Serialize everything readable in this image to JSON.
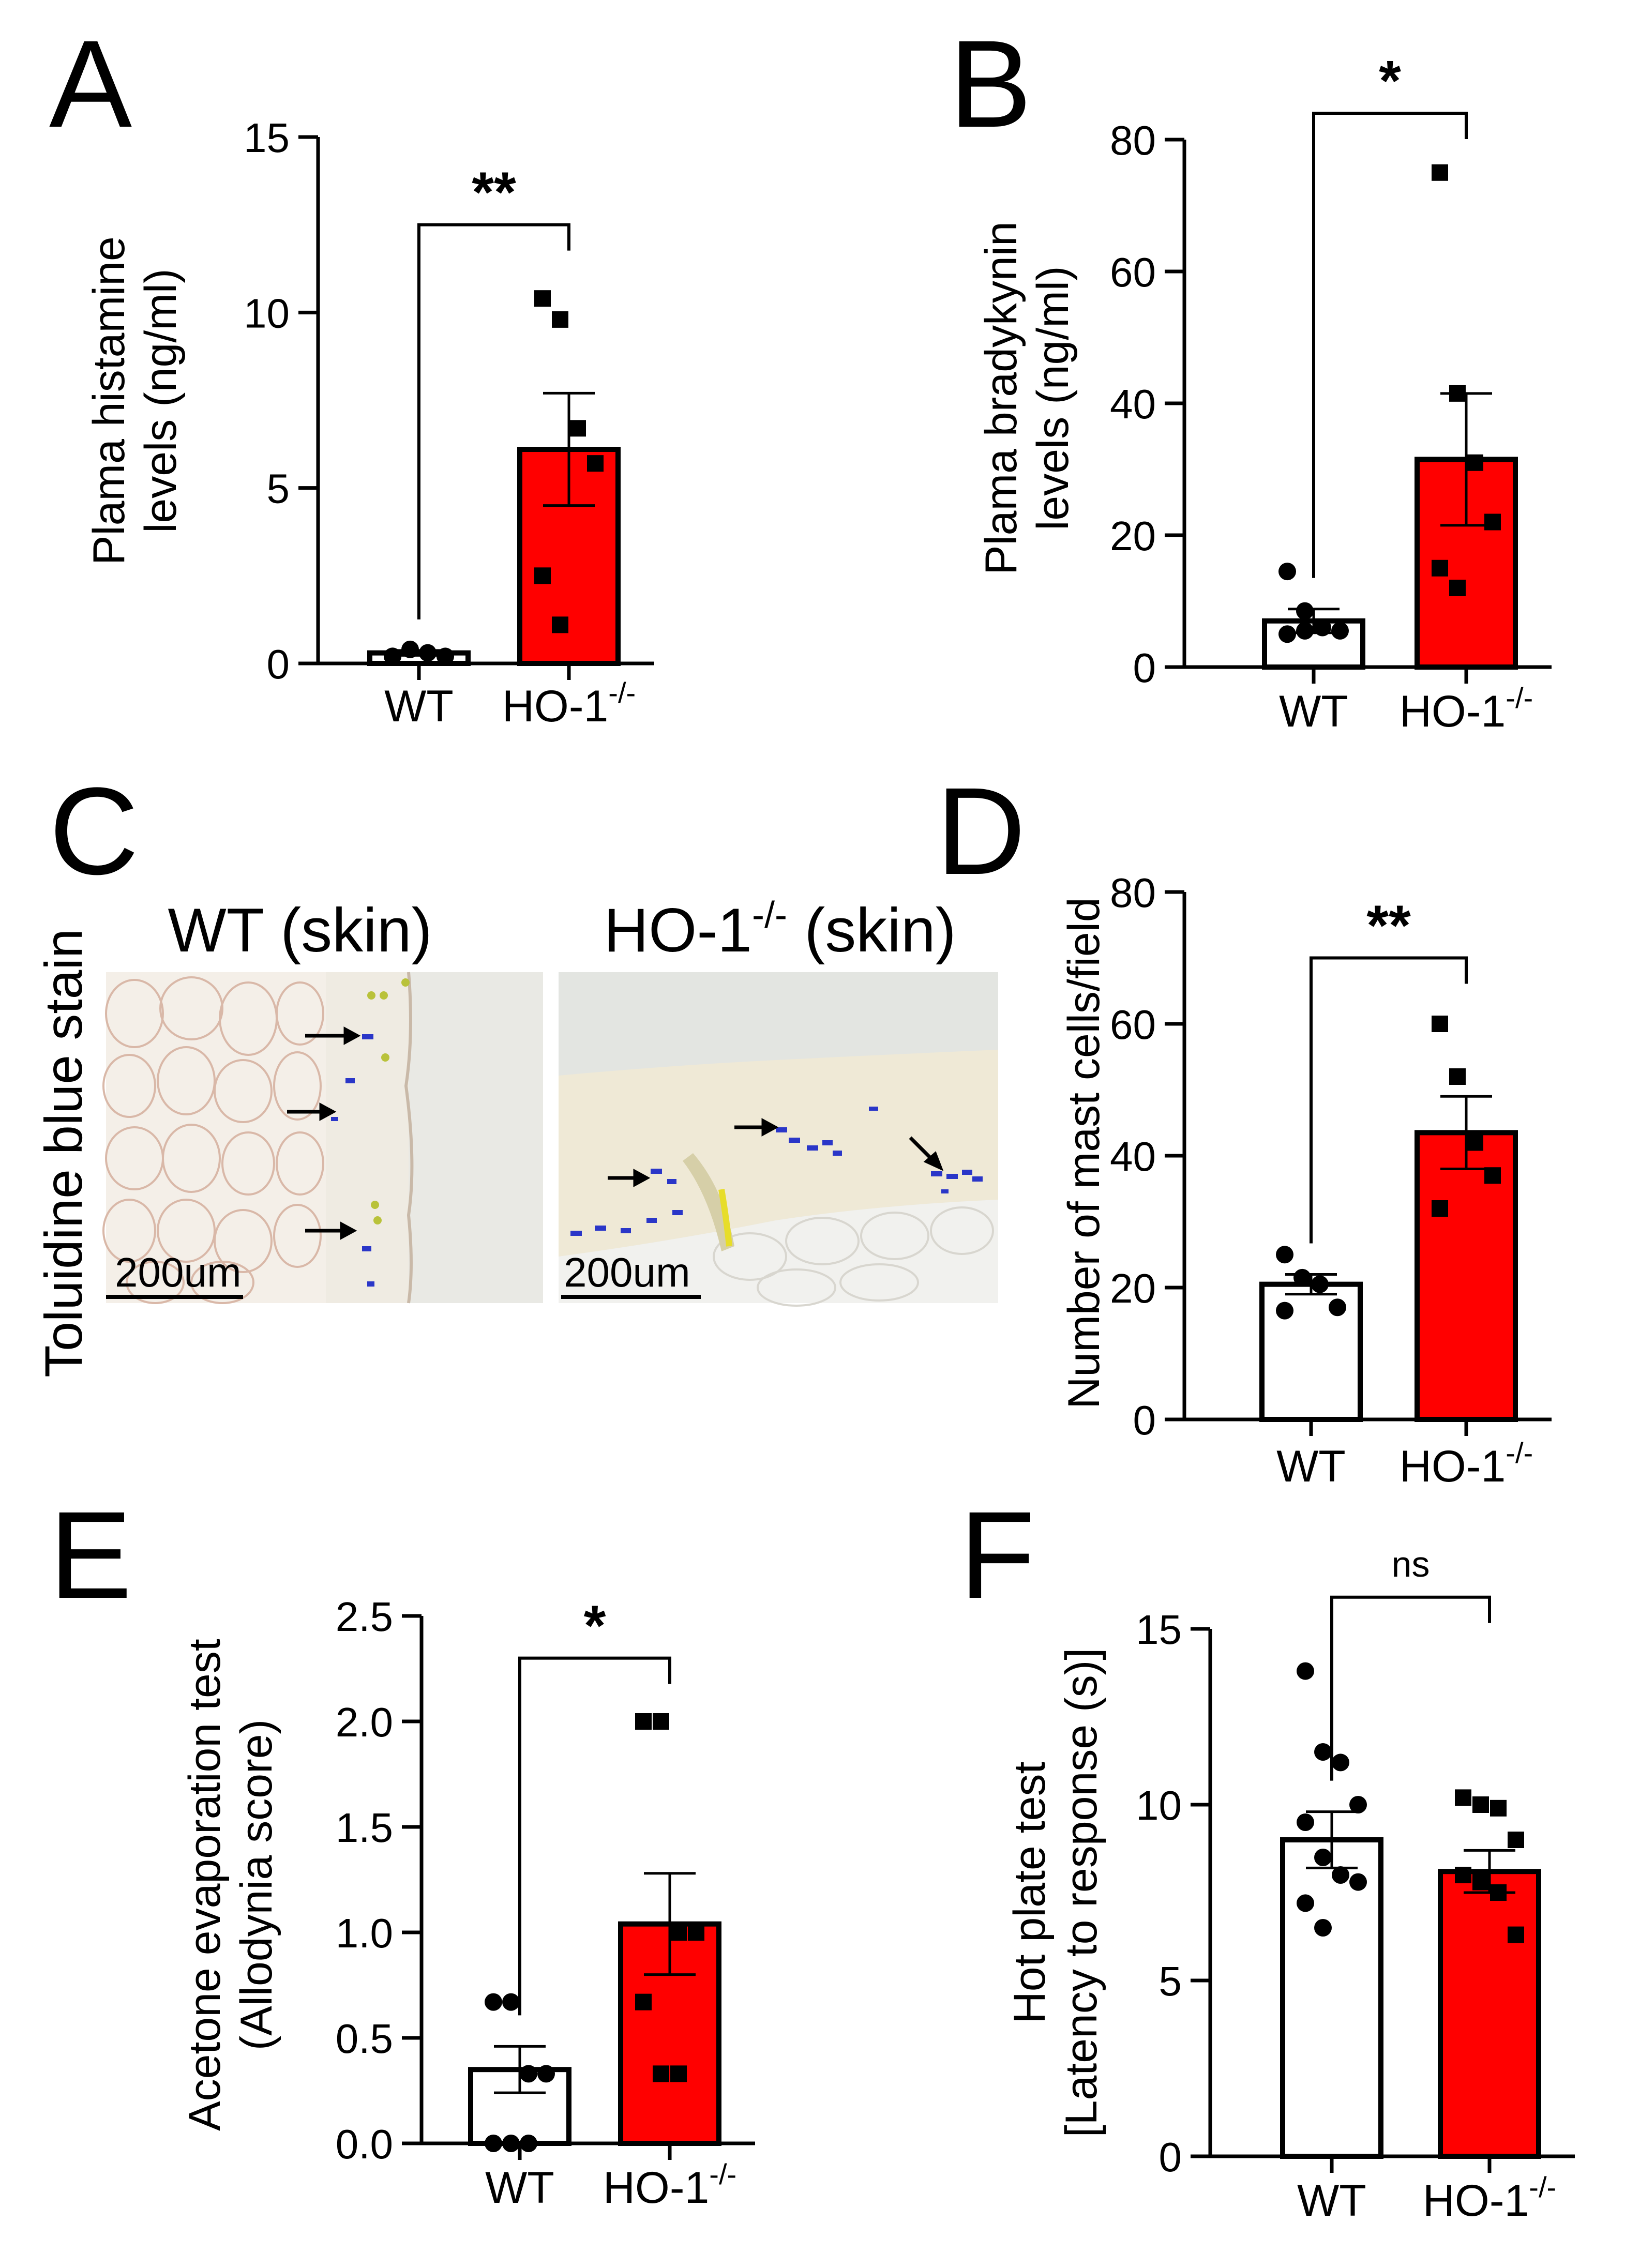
{
  "colors": {
    "wt_fill": "#ffffff",
    "ko_fill": "#ff0000",
    "ink": "#000000",
    "skin_bg": "#e6e7e2",
    "stain": "#2a36c8"
  },
  "chart_data": [
    {
      "panel": "A",
      "type": "bar",
      "ylabel": [
        "Plama histamine",
        "levels (ng/ml)"
      ],
      "ylim": [
        0,
        15
      ],
      "yticks": [
        0,
        5,
        10,
        15
      ],
      "categories": [
        {
          "main": "WT",
          "sup": ""
        },
        {
          "main": "HO-1",
          "sup": "-/-"
        }
      ],
      "series": [
        {
          "name": "WT",
          "mean": 0.3,
          "sem": 0.07,
          "points": [
            0.2,
            0.4,
            0.3,
            0.2,
            0.2
          ]
        },
        {
          "name": "HO-1-/-",
          "mean": 6.1,
          "sem": 1.6,
          "points": [
            10.4,
            9.8,
            6.7,
            5.7,
            2.5,
            1.1
          ]
        }
      ],
      "significance": "**",
      "sig_y": 12.5
    },
    {
      "panel": "B",
      "type": "bar",
      "ylabel": [
        "Plama bradykynin",
        "levels (ng/ml)"
      ],
      "ylim": [
        0,
        80
      ],
      "yticks": [
        0,
        20,
        40,
        60,
        80
      ],
      "categories": [
        {
          "main": "WT",
          "sup": ""
        },
        {
          "main": "HO-1",
          "sup": "-/-"
        }
      ],
      "series": [
        {
          "name": "WT",
          "mean": 7.0,
          "sem": 1.8,
          "points": [
            14.5,
            8.5,
            6.0,
            5.5,
            5.0,
            5.5
          ]
        },
        {
          "name": "HO-1-/-",
          "mean": 31.5,
          "sem": 10.0,
          "points": [
            75,
            41.5,
            31,
            22,
            15,
            12
          ]
        }
      ],
      "significance": "*",
      "sig_y": 84
    },
    {
      "panel": "D",
      "type": "bar",
      "ylabel": [
        "Number of mast cells/field"
      ],
      "ylim": [
        0,
        80
      ],
      "yticks": [
        0,
        20,
        40,
        60,
        80
      ],
      "categories": [
        {
          "main": "WT",
          "sup": ""
        },
        {
          "main": "HO-1",
          "sup": "-/-"
        }
      ],
      "series": [
        {
          "name": "WT",
          "mean": 20.5,
          "sem": 1.5,
          "points": [
            25,
            21.5,
            20.5,
            17,
            16.5
          ]
        },
        {
          "name": "HO-1-/-",
          "mean": 43.5,
          "sem": 5.5,
          "points": [
            60,
            52,
            42,
            37,
            32
          ]
        }
      ],
      "significance": "**",
      "sig_y": 70
    },
    {
      "panel": "E",
      "type": "bar",
      "ylabel": [
        "Acetone evaporation test",
        "(Allodynia score)"
      ],
      "ylim": [
        0,
        2.5
      ],
      "yticks": [
        0.0,
        0.5,
        1.0,
        1.5,
        2.0,
        2.5
      ],
      "tick_decimals": 1,
      "categories": [
        {
          "main": "WT",
          "sup": ""
        },
        {
          "main": "HO-1",
          "sup": "-/-"
        }
      ],
      "series": [
        {
          "name": "WT",
          "mean": 0.35,
          "sem": 0.11,
          "points": [
            0.67,
            0.67,
            0.33,
            0.33,
            0.0,
            0.0,
            0.0
          ]
        },
        {
          "name": "HO-1-/-",
          "mean": 1.04,
          "sem": 0.24,
          "points": [
            2.0,
            2.0,
            1.0,
            1.0,
            0.67,
            0.33,
            0.33
          ]
        }
      ],
      "significance": "*",
      "sig_y": 2.3
    },
    {
      "panel": "F",
      "type": "bar",
      "ylabel": [
        "Hot plate test",
        "[Latency to response (s)]"
      ],
      "ylim": [
        0,
        15
      ],
      "yticks": [
        0,
        5,
        10,
        15
      ],
      "categories": [
        {
          "main": "WT",
          "sup": ""
        },
        {
          "main": "HO-1",
          "sup": "-/-"
        }
      ],
      "series": [
        {
          "name": "WT",
          "mean": 9.0,
          "sem": 0.8,
          "points": [
            13.8,
            11.5,
            11.2,
            10.0,
            9.5,
            8.5,
            8.0,
            7.8,
            7.2,
            6.5
          ]
        },
        {
          "name": "HO-1-/-",
          "mean": 8.1,
          "sem": 0.6,
          "points": [
            10.2,
            10.0,
            9.9,
            9.0,
            8.0,
            7.8,
            7.5,
            6.3
          ]
        }
      ],
      "significance": "ns",
      "sig_y": 15.9
    }
  ],
  "panel_c": {
    "letter": "C",
    "side_label": "Toluidine blue stain",
    "images": [
      {
        "title_main": "WT (skin)",
        "title_sup": "",
        "title_tail": "",
        "scale": "200um"
      },
      {
        "title_main": "HO-1",
        "title_sup": "-/-",
        "title_tail": " (skin)",
        "scale": "200um"
      }
    ]
  },
  "panel_letters": [
    "A",
    "B",
    "C",
    "D",
    "E",
    "F"
  ]
}
